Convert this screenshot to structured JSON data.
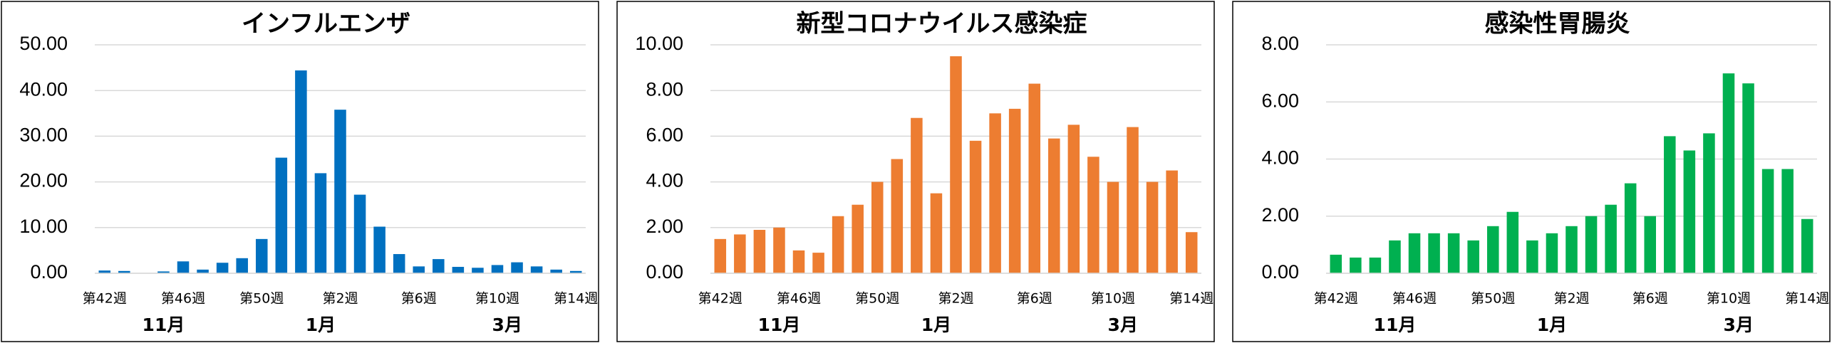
{
  "chart_data": [
    {
      "type": "bar",
      "title": "インフルエンザ",
      "color": "#0070c0",
      "grid": true,
      "categories": [
        "第42週",
        null,
        null,
        null,
        "第46週",
        null,
        null,
        null,
        "第50週",
        null,
        null,
        null,
        "第2週",
        null,
        null,
        null,
        "第6週",
        null,
        null,
        null,
        "第10週",
        null,
        null,
        null,
        "第14週"
      ],
      "values": [
        0.6,
        0.5,
        0,
        0.4,
        2.6,
        0.8,
        2.3,
        3.3,
        7.5,
        25.3,
        44.4,
        21.9,
        35.8,
        17.2,
        10.2,
        4.2,
        1.5,
        3.1,
        1.4,
        1.2,
        1.8,
        2.4,
        1.5,
        0.8,
        0.5
      ],
      "ylim": [
        0,
        50
      ],
      "yticks": [
        {
          "value": 0,
          "label": "0.00"
        },
        {
          "value": 10,
          "label": "10.00"
        },
        {
          "value": 20,
          "label": "20.00"
        },
        {
          "value": 30,
          "label": "30.00"
        },
        {
          "value": 40,
          "label": "40.00"
        },
        {
          "value": 50,
          "label": "50.00"
        }
      ],
      "month_labels": [
        "11月",
        "1月",
        "3月"
      ]
    },
    {
      "type": "bar",
      "title": "新型コロナウイルス感染症",
      "color": "#ed7d31",
      "grid": true,
      "categories": [
        "第42週",
        null,
        null,
        null,
        "第46週",
        null,
        null,
        null,
        "第50週",
        null,
        null,
        null,
        "第2週",
        null,
        null,
        null,
        "第6週",
        null,
        null,
        null,
        "第10週",
        null,
        null,
        null,
        "第14週"
      ],
      "values": [
        1.5,
        1.7,
        1.9,
        2.0,
        1.0,
        0.9,
        2.5,
        3.0,
        4.0,
        5.0,
        6.8,
        3.5,
        9.5,
        5.8,
        7.0,
        7.2,
        8.3,
        5.9,
        6.5,
        5.1,
        4.0,
        6.4,
        4.0,
        4.5,
        1.8
      ],
      "ylim": [
        0,
        10
      ],
      "yticks": [
        {
          "value": 0,
          "label": "0.00"
        },
        {
          "value": 2,
          "label": "2.00"
        },
        {
          "value": 4,
          "label": "4.00"
        },
        {
          "value": 6,
          "label": "6.00"
        },
        {
          "value": 8,
          "label": "8.00"
        },
        {
          "value": 10,
          "label": "10.00"
        }
      ],
      "month_labels": [
        "11月",
        "1月",
        "3月"
      ]
    },
    {
      "type": "bar",
      "title": "感染性胃腸炎",
      "color": "#00b050",
      "grid": true,
      "categories": [
        "第42週",
        null,
        null,
        null,
        "第46週",
        null,
        null,
        null,
        "第50週",
        null,
        null,
        null,
        "第2週",
        null,
        null,
        null,
        "第6週",
        null,
        null,
        null,
        "第10週",
        null,
        null,
        null,
        "第14週"
      ],
      "values": [
        0.65,
        0.55,
        0.55,
        1.15,
        1.4,
        1.4,
        1.4,
        1.15,
        1.65,
        2.15,
        1.15,
        1.4,
        1.65,
        2.0,
        2.4,
        3.15,
        2.0,
        4.8,
        4.3,
        4.9,
        7.0,
        6.65,
        3.65,
        3.65,
        1.9
      ],
      "ylim": [
        0,
        8
      ],
      "yticks": [
        {
          "value": 0,
          "label": "0.00"
        },
        {
          "value": 2,
          "label": "2.00"
        },
        {
          "value": 4,
          "label": "4.00"
        },
        {
          "value": 6,
          "label": "6.00"
        },
        {
          "value": 8,
          "label": "8.00"
        }
      ],
      "month_labels": [
        "11月",
        "1月",
        "3月"
      ]
    }
  ]
}
